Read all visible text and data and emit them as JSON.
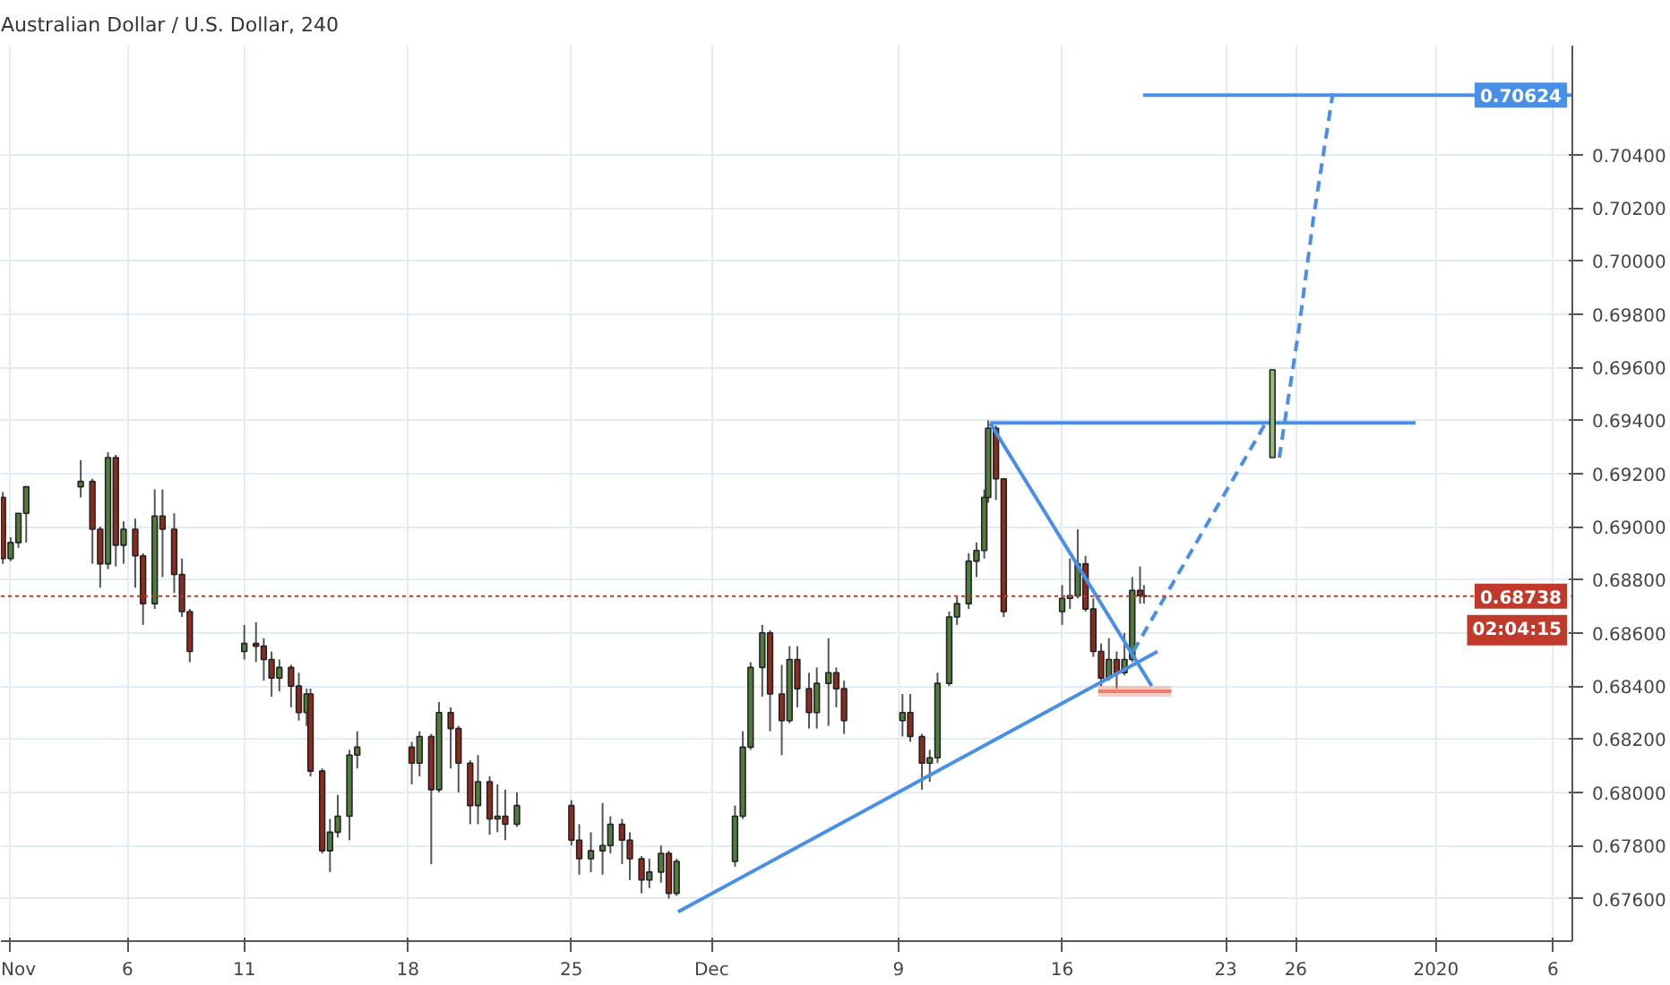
{
  "chart_data": {
    "type": "candlestick",
    "title": "Australian Dollar / U.S. Dollar, 240",
    "xlim": [
      "2019-10-31T14:00",
      "2020-01-06T20:00"
    ],
    "ylim": [
      0.6744,
      0.7081
    ],
    "xticks": [
      {
        "value": "2019-11-01",
        "label": "Nov"
      },
      {
        "value": "2019-11-06",
        "label": "6"
      },
      {
        "value": "2019-11-11",
        "label": "11"
      },
      {
        "value": "2019-11-18",
        "label": "18"
      },
      {
        "value": "2019-11-25",
        "label": "25"
      },
      {
        "value": "2019-12-01",
        "label": "Dec"
      },
      {
        "value": "2019-12-09",
        "label": "9"
      },
      {
        "value": "2019-12-16",
        "label": "16"
      },
      {
        "value": "2019-12-23",
        "label": "23"
      },
      {
        "value": "2019-12-26",
        "label": "26"
      },
      {
        "value": "2020-01-01",
        "label": "2020"
      },
      {
        "value": "2020-01-06",
        "label": "6"
      }
    ],
    "yticks": [
      {
        "value": 0.676,
        "label": "0.67600"
      },
      {
        "value": 0.678,
        "label": "0.67800"
      },
      {
        "value": 0.68,
        "label": "0.68000"
      },
      {
        "value": 0.682,
        "label": "0.68200"
      },
      {
        "value": 0.684,
        "label": "0.68400"
      },
      {
        "value": 0.686,
        "label": "0.68600"
      },
      {
        "value": 0.688,
        "label": "0.68800"
      },
      {
        "value": 0.69,
        "label": "0.69000"
      },
      {
        "value": 0.692,
        "label": "0.69200"
      },
      {
        "value": 0.694,
        "label": "0.69400"
      },
      {
        "value": 0.696,
        "label": "0.69600"
      },
      {
        "value": 0.698,
        "label": "0.69800"
      },
      {
        "value": 0.7,
        "label": "0.70000"
      },
      {
        "value": 0.702,
        "label": "0.70200"
      },
      {
        "value": 0.704,
        "label": "0.70400"
      }
    ],
    "grid": true,
    "ref_lines": [
      {
        "axis": "y",
        "value": 0.68738,
        "label": "0.68738",
        "color": "#c0392b",
        "line_style": "dotted"
      }
    ],
    "annotations": [
      "02:04:15",
      {
        "text": "0.70624",
        "x": "2020-01-06T20:00",
        "y": 0.70624
      }
    ],
    "series": [
      {
        "x": [
          "2019-10-31T16:00",
          "2019-11-01T00:00",
          "2019-11-01T08:00",
          "2019-11-01T16:00",
          "2019-11-04T00:00",
          "2019-11-04T12:00",
          "2019-11-04T20:00",
          "2019-11-05T04:00",
          "2019-11-05T12:00",
          "2019-11-05T20:00",
          "2019-11-06T08:00",
          "2019-11-06T16:00",
          "2019-11-07T04:00",
          "2019-11-07T12:00",
          "2019-11-08T00:00",
          "2019-11-08T08:00",
          "2019-11-08T16:00",
          "2019-11-11T00:00",
          "2019-11-11T12:00",
          "2019-11-11T20:00",
          "2019-11-12T04:00",
          "2019-11-12T12:00",
          "2019-11-13T00:00",
          "2019-11-13T08:00",
          "2019-11-13T16:00",
          "2019-11-13T20:00",
          "2019-11-14T08:00",
          "2019-11-14T16:00",
          "2019-11-15T00:00",
          "2019-11-15T12:00",
          "2019-11-15T20:00",
          "2019-11-18T04:00",
          "2019-11-18T12:00",
          "2019-11-19T00:00",
          "2019-11-19T08:00",
          "2019-11-19T20:00",
          "2019-11-20T04:00",
          "2019-11-20T16:00",
          "2019-11-21T00:00",
          "2019-11-21T12:00",
          "2019-11-21T20:00",
          "2019-11-22T04:00",
          "2019-11-22T16:00",
          "2019-11-25T00:00",
          "2019-11-25T08:00",
          "2019-11-25T20:00",
          "2019-11-26T08:00",
          "2019-11-26T16:00",
          "2019-11-27T04:00",
          "2019-11-27T12:00",
          "2019-11-28T00:00",
          "2019-11-28T08:00",
          "2019-11-28T20:00",
          "2019-11-29T04:00",
          "2019-11-29T12:00",
          "2019-12-02T00:00",
          "2019-12-02T08:00",
          "2019-12-02T16:00",
          "2019-12-03T04:00",
          "2019-12-03T12:00",
          "2019-12-04T00:00",
          "2019-12-04T08:00",
          "2019-12-04T16:00",
          "2019-12-05T04:00",
          "2019-12-05T12:00",
          "2019-12-06T00:00",
          "2019-12-06T08:00",
          "2019-12-06T16:00",
          "2019-12-09T04:00",
          "2019-12-09T12:00",
          "2019-12-10T00:00",
          "2019-12-10T08:00",
          "2019-12-10T16:00",
          "2019-12-11T04:00",
          "2019-12-11T12:00",
          "2019-12-12T00:00",
          "2019-12-12T08:00",
          "2019-12-12T16:00",
          "2019-12-12T20:00",
          "2019-12-13T04:00",
          "2019-12-13T12:00",
          "2019-12-16T00:00",
          "2019-12-16T08:00",
          "2019-12-16T16:00",
          "2019-12-17T00:00",
          "2019-12-17T08:00",
          "2019-12-17T16:00",
          "2019-12-18T00:00",
          "2019-12-18T08:00",
          "2019-12-18T16:00",
          "2019-12-19T00:00",
          "2019-12-19T08:00",
          "2019-12-19T12:00"
        ],
        "ohlc": [
          [
            0.6911,
            0.6913,
            0.6886,
            0.6888
          ],
          [
            0.6888,
            0.6896,
            0.6887,
            0.6894
          ],
          [
            0.6894,
            0.6905,
            0.6892,
            0.6905
          ],
          [
            0.6905,
            0.6915,
            0.6894,
            0.6915
          ],
          [
            0.6915,
            0.6925,
            0.6911,
            0.6917
          ],
          [
            0.6917,
            0.6918,
            0.6886,
            0.6899
          ],
          [
            0.6899,
            0.69,
            0.6877,
            0.6886
          ],
          [
            0.6886,
            0.6928,
            0.6884,
            0.6926
          ],
          [
            0.6926,
            0.6927,
            0.6885,
            0.6893
          ],
          [
            0.6893,
            0.6902,
            0.6886,
            0.6899
          ],
          [
            0.6899,
            0.6903,
            0.6877,
            0.6889
          ],
          [
            0.6889,
            0.689,
            0.6863,
            0.6871
          ],
          [
            0.6871,
            0.6914,
            0.6869,
            0.6904
          ],
          [
            0.6904,
            0.6914,
            0.6881,
            0.6899
          ],
          [
            0.6899,
            0.6905,
            0.6875,
            0.6882
          ],
          [
            0.6882,
            0.6888,
            0.6866,
            0.6868
          ],
          [
            0.6868,
            0.6869,
            0.6849,
            0.6853
          ],
          [
            0.6853,
            0.6863,
            0.685,
            0.6856
          ],
          [
            0.6856,
            0.6864,
            0.6849,
            0.6855
          ],
          [
            0.6855,
            0.6858,
            0.6842,
            0.685
          ],
          [
            0.685,
            0.6853,
            0.6836,
            0.6843
          ],
          [
            0.6843,
            0.685,
            0.6838,
            0.6847
          ],
          [
            0.6847,
            0.6848,
            0.6832,
            0.684
          ],
          [
            0.684,
            0.6845,
            0.6827,
            0.683
          ],
          [
            0.683,
            0.6839,
            0.6825,
            0.6837
          ],
          [
            0.6837,
            0.6839,
            0.6806,
            0.6808
          ],
          [
            0.6808,
            0.6809,
            0.6777,
            0.6778
          ],
          [
            0.6778,
            0.679,
            0.677,
            0.6785
          ],
          [
            0.6785,
            0.6799,
            0.6783,
            0.6791
          ],
          [
            0.6791,
            0.6816,
            0.6782,
            0.6814
          ],
          [
            0.6814,
            0.6823,
            0.6809,
            0.6817
          ],
          [
            0.6817,
            0.6819,
            0.6803,
            0.6811
          ],
          [
            0.6811,
            0.6823,
            0.6806,
            0.6821
          ],
          [
            0.6821,
            0.6822,
            0.6773,
            0.6801
          ],
          [
            0.6801,
            0.6834,
            0.68,
            0.683
          ],
          [
            0.683,
            0.6832,
            0.6809,
            0.6824
          ],
          [
            0.6824,
            0.6825,
            0.68,
            0.6811
          ],
          [
            0.6811,
            0.6812,
            0.6788,
            0.6795
          ],
          [
            0.6795,
            0.6814,
            0.6788,
            0.6804
          ],
          [
            0.6804,
            0.6806,
            0.6784,
            0.679
          ],
          [
            0.679,
            0.6803,
            0.6785,
            0.6791
          ],
          [
            0.6791,
            0.6801,
            0.6782,
            0.6788
          ],
          [
            0.6788,
            0.68,
            0.6787,
            0.6795
          ],
          [
            0.6795,
            0.6797,
            0.678,
            0.6782
          ],
          [
            0.6782,
            0.6788,
            0.6769,
            0.6775
          ],
          [
            0.6775,
            0.6785,
            0.677,
            0.6778
          ],
          [
            0.6778,
            0.6796,
            0.6769,
            0.678
          ],
          [
            0.678,
            0.6791,
            0.6777,
            0.6788
          ],
          [
            0.6788,
            0.679,
            0.6773,
            0.6782
          ],
          [
            0.6782,
            0.6785,
            0.6767,
            0.6775
          ],
          [
            0.6775,
            0.6776,
            0.6762,
            0.6767
          ],
          [
            0.6767,
            0.6775,
            0.6764,
            0.677
          ],
          [
            0.677,
            0.678,
            0.6766,
            0.6777
          ],
          [
            0.6777,
            0.6778,
            0.676,
            0.6762
          ],
          [
            0.6762,
            0.6775,
            0.6761,
            0.6774
          ],
          [
            0.6774,
            0.6795,
            0.6772,
            0.6791
          ],
          [
            0.6791,
            0.6823,
            0.679,
            0.6817
          ],
          [
            0.6817,
            0.6849,
            0.6816,
            0.6847
          ],
          [
            0.6847,
            0.6863,
            0.6836,
            0.686
          ],
          [
            0.686,
            0.6861,
            0.6823,
            0.6837
          ],
          [
            0.6837,
            0.6848,
            0.6814,
            0.6827
          ],
          [
            0.6827,
            0.6855,
            0.6826,
            0.685
          ],
          [
            0.685,
            0.6855,
            0.6832,
            0.6839
          ],
          [
            0.6839,
            0.6845,
            0.6824,
            0.683
          ],
          [
            0.683,
            0.6847,
            0.6824,
            0.6841
          ],
          [
            0.6841,
            0.6858,
            0.6825,
            0.6845
          ],
          [
            0.6845,
            0.6847,
            0.6832,
            0.6839
          ],
          [
            0.6839,
            0.6842,
            0.6822,
            0.6827
          ],
          [
            0.6827,
            0.6837,
            0.6821,
            0.683
          ],
          [
            0.683,
            0.6837,
            0.6819,
            0.6821
          ],
          [
            0.6821,
            0.6822,
            0.6801,
            0.6811
          ],
          [
            0.6811,
            0.6816,
            0.6804,
            0.6813
          ],
          [
            0.6813,
            0.6845,
            0.6811,
            0.6841
          ],
          [
            0.6841,
            0.6868,
            0.684,
            0.6866
          ],
          [
            0.6866,
            0.6874,
            0.6863,
            0.6871
          ],
          [
            0.6871,
            0.689,
            0.6869,
            0.6887
          ],
          [
            0.6887,
            0.6894,
            0.6881,
            0.6891
          ],
          [
            0.6891,
            0.6914,
            0.6888,
            0.6911
          ],
          [
            0.6911,
            0.694,
            0.6909,
            0.6937
          ],
          [
            0.6937,
            0.6938,
            0.691,
            0.6918
          ],
          [
            0.6918,
            0.6918,
            0.6866,
            0.6868
          ],
          [
            0.6868,
            0.6878,
            0.6863,
            0.6873
          ],
          [
            0.6873,
            0.6888,
            0.6869,
            0.6874
          ],
          [
            0.6874,
            0.6899,
            0.6873,
            0.6886
          ],
          [
            0.6886,
            0.6889,
            0.6868,
            0.6869
          ],
          [
            0.6869,
            0.6873,
            0.6851,
            0.6853
          ],
          [
            0.6853,
            0.6856,
            0.684,
            0.6843
          ],
          [
            0.6843,
            0.6858,
            0.6842,
            0.685
          ],
          [
            0.685,
            0.6853,
            0.6839,
            0.6845
          ],
          [
            0.6845,
            0.686,
            0.6844,
            0.685
          ],
          [
            0.685,
            0.6881,
            0.6849,
            0.6876
          ],
          [
            0.6876,
            0.6885,
            0.6871,
            0.6874
          ],
          [
            0.6874,
            0.6878,
            0.6871,
            0.68738
          ]
        ],
        "colors": [
          "#8e2a1e",
          "#4e7d3c",
          "#4e7d3c",
          "#4e7d3c",
          "#4e7d3c",
          "#8e2a1e",
          "#8e2a1e",
          "#4e7d3c",
          "#8e2a1e",
          "#4e7d3c",
          "#8e2a1e",
          "#8e2a1e",
          "#4e7d3c",
          "#8e2a1e",
          "#8e2a1e",
          "#8e2a1e",
          "#8e2a1e",
          "#4e7d3c",
          "#8e2a1e",
          "#8e2a1e",
          "#8e2a1e",
          "#4e7d3c",
          "#8e2a1e",
          "#8e2a1e",
          "#4e7d3c",
          "#8e2a1e",
          "#8e2a1e",
          "#4e7d3c",
          "#4e7d3c",
          "#4e7d3c",
          "#4e7d3c",
          "#8e2a1e",
          "#4e7d3c",
          "#8e2a1e",
          "#4e7d3c",
          "#8e2a1e",
          "#8e2a1e",
          "#8e2a1e",
          "#4e7d3c",
          "#8e2a1e",
          "#4e7d3c",
          "#8e2a1e",
          "#4e7d3c",
          "#8e2a1e",
          "#8e2a1e",
          "#4e7d3c",
          "#4e7d3c",
          "#4e7d3c",
          "#8e2a1e",
          "#8e2a1e",
          "#8e2a1e",
          "#4e7d3c",
          "#4e7d3c",
          "#8e2a1e",
          "#4e7d3c",
          "#4e7d3c",
          "#4e7d3c",
          "#4e7d3c",
          "#4e7d3c",
          "#8e2a1e",
          "#8e2a1e",
          "#4e7d3c",
          "#8e2a1e",
          "#8e2a1e",
          "#4e7d3c",
          "#4e7d3c",
          "#8e2a1e",
          "#8e2a1e",
          "#4e7d3c",
          "#8e2a1e",
          "#8e2a1e",
          "#4e7d3c",
          "#4e7d3c",
          "#4e7d3c",
          "#4e7d3c",
          "#4e7d3c",
          "#4e7d3c",
          "#4e7d3c",
          "#4e7d3c",
          "#8e2a1e",
          "#8e2a1e",
          "#4e7d3c",
          "#4e7d3c",
          "#4e7d3c",
          "#8e2a1e",
          "#8e2a1e",
          "#8e2a1e",
          "#4e7d3c",
          "#8e2a1e",
          "#4e7d3c",
          "#4e7d3c",
          "#8e2a1e",
          "#8e2a1e"
        ]
      },
      {
        "type": "line",
        "color": "#4a8fe7",
        "x": [
          "2019-11-29T13:30",
          "2019-12-20T02:00"
        ],
        "values": [
          0.6755,
          0.6853
        ]
      },
      {
        "type": "line",
        "color": "#4a8fe7",
        "x": [
          "2019-12-12T22:00",
          "2019-12-19T20:00"
        ],
        "values": [
          0.6939,
          0.684
        ]
      },
      {
        "type": "line",
        "color": "#4a8fe7",
        "x": [
          "2019-12-12T22:00",
          "2019-12-31T03:00"
        ],
        "values": [
          0.6939,
          0.6939
        ]
      },
      {
        "type": "line",
        "color": "#4a8fe7",
        "x": [
          "2019-12-19T11:00",
          "2020-01-06T20:00"
        ],
        "values": [
          0.70624,
          0.70624
        ]
      },
      {
        "type": "line",
        "color": "#4a8fe7",
        "line_style": "dashed",
        "x": [
          "2019-12-19T01:00",
          "2019-12-24T17:00"
        ],
        "values": [
          0.6853,
          0.6939
        ]
      },
      {
        "type": "line",
        "color": "#4a8fe7",
        "line_style": "dashed",
        "x": [
          "2019-12-25T07:00",
          "2019-12-26T03:00",
          "2019-12-26T18:00",
          "2019-12-27T14:00"
        ],
        "values": [
          0.6926,
          0.6974,
          0.7016,
          0.7063
        ]
      },
      {
        "type": "line",
        "color": "#e8806f",
        "x": [
          "2019-12-17T13:00",
          "2019-12-20T16:00"
        ],
        "values": [
          0.6838,
          0.6838
        ],
        "lower": [
          0.6836,
          0.6836
        ],
        "upper": [
          0.684,
          0.684
        ]
      },
      {
        "x": [
          "2019-12-25T00:00"
        ],
        "ohlc": [
          [
            0.6926,
            0.6959,
            0.6926,
            0.6959
          ]
        ],
        "colors": [
          "#8fbf7a"
        ]
      }
    ]
  }
}
